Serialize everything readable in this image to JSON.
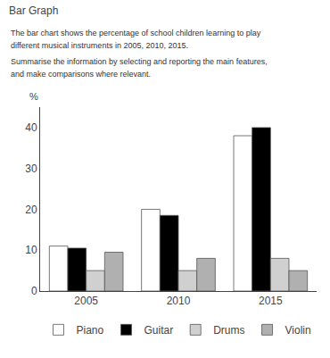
{
  "chart_data": {
    "type": "bar",
    "title": "Bar Graph",
    "annotations": [
      "The bar chart shows the percentage of school children learning to play",
      "different musical instruments in 2005, 2010, 2015.",
      "Summarise the information by selecting and reporting the main features,",
      "and make comparisons where relevant."
    ],
    "ylabel": "%",
    "categories": [
      "2005",
      "2010",
      "2015"
    ],
    "series": [
      {
        "name": "Piano",
        "color": "#ffffff",
        "values": [
          11,
          20,
          38
        ]
      },
      {
        "name": "Guitar",
        "color": "#000000",
        "values": [
          10.5,
          18.5,
          40
        ]
      },
      {
        "name": "Drums",
        "color": "#d0d0d0",
        "values": [
          5,
          5,
          8
        ]
      },
      {
        "name": "Violin",
        "color": "#b0b0b0",
        "values": [
          9.5,
          8,
          5
        ]
      }
    ],
    "ylim": [
      0,
      45
    ],
    "yticks": [
      0,
      10,
      20,
      30,
      40
    ],
    "grid": false,
    "legend": "bottom"
  }
}
